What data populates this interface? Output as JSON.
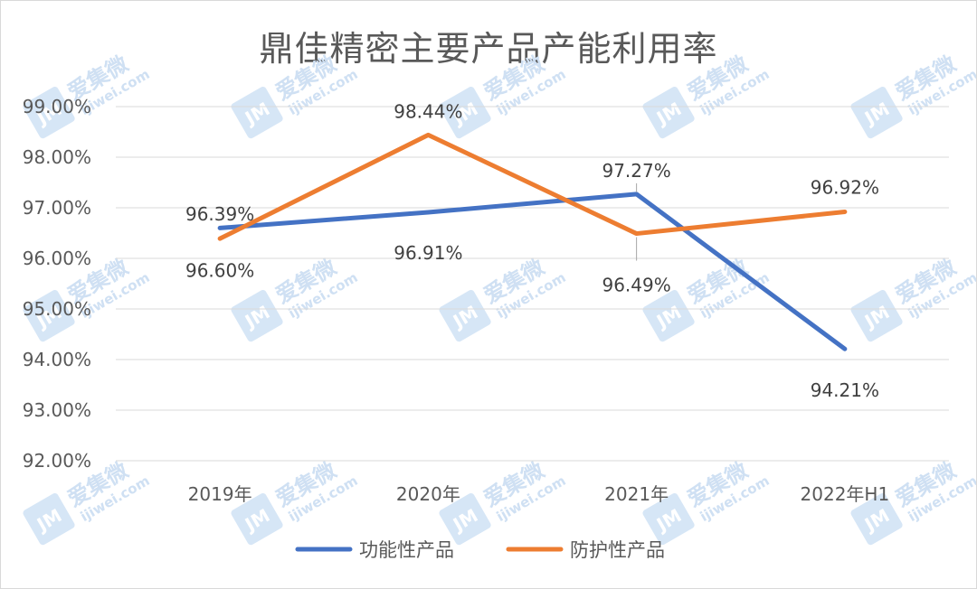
{
  "chart_data": {
    "type": "line",
    "title": "鼎佳精密主要产品产能利用率",
    "categories": [
      "2019年",
      "2020年",
      "2021年",
      "2022年H1"
    ],
    "ylim": [
      92,
      99
    ],
    "yticks": [
      "92.00%",
      "93.00%",
      "94.00%",
      "95.00%",
      "96.00%",
      "97.00%",
      "98.00%",
      "99.00%"
    ],
    "grid": true,
    "legend_position": "bottom",
    "series": [
      {
        "name": "功能性产品",
        "color": "#4472C4",
        "values": [
          96.6,
          96.91,
          97.27,
          94.21
        ],
        "labels": [
          "96.60%",
          "96.91%",
          "97.27%",
          "94.21%"
        ]
      },
      {
        "name": "防护性产品",
        "color": "#ED7D31",
        "values": [
          96.39,
          98.44,
          96.49,
          96.92
        ],
        "labels": [
          "96.39%",
          "98.44%",
          "96.49%",
          "96.92%"
        ]
      }
    ]
  },
  "watermark": {
    "brand": "爱集微",
    "url": "ijiwei.com",
    "logo": "JM"
  }
}
